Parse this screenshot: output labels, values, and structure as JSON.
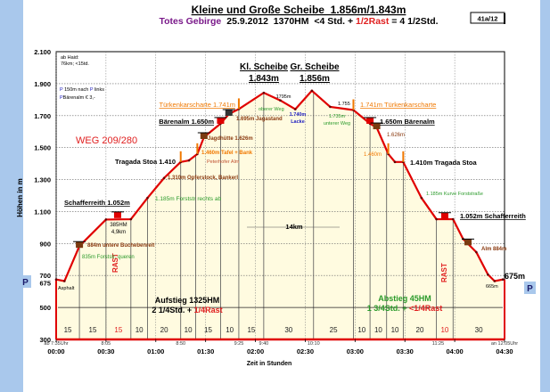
{
  "colors": {
    "line": "#e00000",
    "fill": "#fffbe0",
    "rast": "#e02020",
    "orange": "#f07800",
    "green": "#2a9a2a",
    "brown": "#8a3a10",
    "purple": "#7a1a8a",
    "blue": "#2020c0",
    "sidebar": "#a9c8ec"
  },
  "chart_data": {
    "type": "area",
    "title": "Kleine und Große Scheibe  1.856m/1.843m",
    "subtitle": {
      "region": "Totes Gebirge",
      "info": "25.9.2012  1370HM  <4 Std. + ",
      "rast": "1/2Rast",
      "total": " = 4 1/2Std."
    },
    "badge": "41a/12",
    "xlabel": "Zeit in Stunden",
    "ylabel": "Höhen in m",
    "xlim": [
      "00:00",
      "04:30"
    ],
    "ylim": [
      300,
      2100
    ],
    "x_ticks": [
      "00:00",
      "00:30",
      "01:00",
      "01:30",
      "02:00",
      "02:30",
      "03:00",
      "03:30",
      "04:00",
      "04:30"
    ],
    "y_ticks": [
      "2.100",
      "1.900",
      "1.700",
      "1.500",
      "1.300",
      "1.100",
      "900",
      "700",
      "675",
      "500",
      "300"
    ],
    "grid": true,
    "profile": [
      [
        "0:00",
        675
      ],
      [
        "0:05",
        665
      ],
      [
        "0:14",
        884
      ],
      [
        "0:30",
        1050
      ],
      [
        "0:45",
        1052
      ],
      [
        "0:55",
        1185
      ],
      [
        "1:05",
        1310
      ],
      [
        "1:15",
        1410
      ],
      [
        "1:20",
        1420
      ],
      [
        "1:25",
        1460
      ],
      [
        "1:29",
        1565
      ],
      [
        "1:39",
        1650
      ],
      [
        "1:44",
        1710
      ],
      [
        "1:50",
        1741
      ],
      [
        "2:05",
        1843
      ],
      [
        "2:15",
        1795
      ],
      [
        "2:24",
        1740
      ],
      [
        "2:34",
        1856
      ],
      [
        "2:45",
        1755
      ],
      [
        "2:59",
        1735
      ],
      [
        "3:09",
        1650
      ],
      [
        "3:13",
        1626
      ],
      [
        "3:20",
        1460
      ],
      [
        "3:24",
        1410
      ],
      [
        "3:29",
        1410
      ],
      [
        "3:40",
        1185
      ],
      [
        "3:49",
        1052
      ],
      [
        "3:59",
        1052
      ],
      [
        "4:05",
        929
      ],
      [
        "4:13",
        846
      ],
      [
        "4:20",
        706
      ],
      [
        "4:24",
        665
      ],
      [
        "4:29",
        675
      ]
    ],
    "dividers": [
      "0:14",
      "0:30",
      "0:45",
      "0:55",
      "1:15",
      "1:24",
      "1:39",
      "1:50",
      "2:05",
      "2:35",
      "2:59",
      "3:09",
      "3:19",
      "3:29",
      "3:49",
      "3:59"
    ],
    "segments": [
      {
        "label": "15"
      },
      {
        "label": "15"
      },
      {
        "label": "15",
        "rast": true
      },
      {
        "label": "10"
      },
      {
        "label": "20"
      },
      {
        "label": "10"
      },
      {
        "label": "15"
      },
      {
        "label": "10"
      },
      {
        "label": "15"
      },
      {
        "label": "30"
      },
      {
        "label": "25"
      },
      {
        "label": "10"
      },
      {
        "label": "10"
      },
      {
        "label": "10"
      },
      {
        "label": "20"
      },
      {
        "label": "10",
        "rast": true
      },
      {
        "label": "30"
      }
    ],
    "clock_times": [
      {
        "t": "0:00",
        "label": "ab 7:35Uhr"
      },
      {
        "t": "0:30",
        "label": "8:05"
      },
      {
        "t": "1:15",
        "label": "8:50"
      },
      {
        "t": "1:50",
        "label": "9:25"
      },
      {
        "t": "2:05",
        "label": "9:40"
      },
      {
        "t": "2:35",
        "label": "10:10"
      },
      {
        "t": "3:50",
        "label": "11:25"
      },
      {
        "t": "4:30",
        "label": "an 12:05Uhr"
      }
    ]
  },
  "notes": {
    "haid1": "ab Haid:",
    "haid2": "76km; <15td.",
    "park1": "150m nach",
    "park1b": "links",
    "park2": "Bärenalm € 3,-",
    "p": "P",
    "weg": "WEG 209/280",
    "tuerken_up": "Türkenkarscharte 1.741m",
    "baeren_up": "Bärenalm 1.650m",
    "jagd": "Jagdhütte 1.626m",
    "jagastand": "1.695m Jagastand",
    "oberer": "oberer Weg",
    "kl1": "Kl. Scheibe",
    "kl2": "1.843m",
    "gr1": "Gr. Scheibe",
    "gr2": "1.856m",
    "m1795": "1795m",
    "lacke1": "1.740m",
    "lacke2": "Lacke",
    "m1755": "1.755",
    "tuerken_down": "1.741m Türkenkarscharte",
    "unterer1": "1.735m",
    "unterer2": "unterer Weg",
    "baeren_down": "1.650m Bärenalm",
    "m1626": "1.626m",
    "m1460": "1.460m",
    "tragada_down": "1.410m Tragada Stoa",
    "kurve": "1.185m Kurve Forststraße",
    "schaff_down": "1.052m Schafferreith",
    "alm": "Alm 884m",
    "m675": "675m",
    "m665": "665m",
    "rast": "RAST",
    "abstieg1": "Abstieg 45HM",
    "abstieg2": "1 3/4Std. + ",
    "abstieg3": "<1/4Rast",
    "aufstieg1": "Aufstieg 1325HM",
    "aufstieg2": "2 1/4Std. + ",
    "aufstieg3": "1/4Rast",
    "km": "14km",
    "tragada_up": "Tragada Stoa 1.410",
    "tafel": "1.460m Tafel + Bank",
    "peterhofer": "Peterhofer Alm",
    "opfer": "1.310m Opferstock, Bankerl",
    "forst_rechts": "1.185m Forststr rechts ab",
    "schaff_up": "Schafferreith 1.052m",
    "hm385": "385HM",
    "km49": "4,9km",
    "buchen": "884m untere Buchebenreit",
    "forst_queren": "835m Forststr. queren",
    "asphalt": "Asphalt"
  }
}
